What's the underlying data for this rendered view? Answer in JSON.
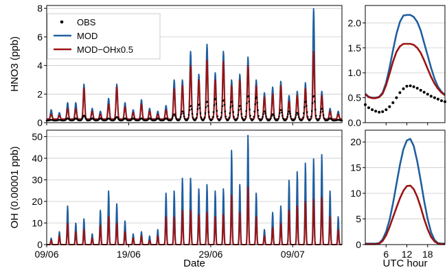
{
  "colors": {
    "obs": "#000000",
    "mod": "#1f5fa0",
    "mod_oh": "#9b1212",
    "grid": "#c8c8c8"
  },
  "chart_data": [
    {
      "type": "line",
      "panel": "hno3-timeseries",
      "ylabel": "HNO3 (ppb)",
      "xlabel": "",
      "xlim": [
        "2019-06-09",
        "2019-07-15"
      ],
      "ylim": [
        0,
        8.2
      ],
      "xtick_labels": [
        "09/06",
        "19/06",
        "29/06",
        "09/07"
      ],
      "ytick_labels": [
        "0",
        "2",
        "4",
        "6",
        "8"
      ],
      "grid": "horizontal",
      "legend": {
        "position": "top-left",
        "entries": [
          "OBS",
          "MOD",
          "MOD−OHx0.5"
        ]
      },
      "daily_peaks": {
        "dates": [
          "06-09",
          "06-10",
          "06-11",
          "06-12",
          "06-13",
          "06-14",
          "06-15",
          "06-16",
          "06-17",
          "06-18",
          "06-19",
          "06-20",
          "06-21",
          "06-22",
          "06-23",
          "06-24",
          "06-25",
          "06-26",
          "06-27",
          "06-28",
          "06-29",
          "06-30",
          "07-01",
          "07-02",
          "07-03",
          "07-04",
          "07-05",
          "07-06",
          "07-07",
          "07-08",
          "07-09",
          "07-10",
          "07-11",
          "07-12",
          "07-13",
          "07-14"
        ],
        "series": [
          {
            "name": "MOD",
            "values": [
              0.9,
              0.7,
              1.4,
              1.4,
              2.7,
              1.0,
              0.8,
              1.7,
              2.7,
              1.4,
              0.9,
              1.6,
              1.0,
              0.8,
              1.2,
              3.0,
              3.0,
              5.0,
              3.4,
              5.5,
              3.5,
              5.0,
              3.0,
              3.4,
              4.6,
              3.0,
              2.1,
              2.5,
              2.9,
              1.9,
              2.2,
              2.8,
              8.0,
              2.2,
              1.0,
              0.8
            ]
          },
          {
            "name": "MOD−OHx0.5",
            "values": [
              0.6,
              0.5,
              1.0,
              1.0,
              2.4,
              0.8,
              0.6,
              1.3,
              2.5,
              1.1,
              0.7,
              1.3,
              0.8,
              0.6,
              0.9,
              2.4,
              2.6,
              4.0,
              3.0,
              4.4,
              3.0,
              4.3,
              2.6,
              3.0,
              4.0,
              2.6,
              1.8,
              2.0,
              2.6,
              1.5,
              1.9,
              2.4,
              5.0,
              1.9,
              0.8,
              0.6
            ]
          },
          {
            "name": "OBS",
            "values": [
              0.2,
              0.2,
              0.3,
              0.3,
              0.5,
              0.3,
              0.3,
              0.3,
              0.4,
              0.3,
              0.3,
              0.3,
              0.3,
              0.3,
              0.3,
              0.6,
              0.8,
              1.2,
              1.3,
              1.5,
              1.7,
              1.6,
              1.5,
              1.2,
              1.9,
              1.8,
              0.8,
              0.6,
              0.9,
              0.8,
              0.7,
              1.5,
              1.9,
              1.0,
              0.3,
              0.2
            ]
          }
        ]
      }
    },
    {
      "type": "line",
      "panel": "oh-timeseries",
      "ylabel": "OH (0.00001 ppb)",
      "xlabel": "Date",
      "xlim": [
        "2019-06-09",
        "2019-07-15"
      ],
      "ylim": [
        0,
        53
      ],
      "xtick_labels": [
        "09/06",
        "19/06",
        "29/06",
        "09/07"
      ],
      "ytick_labels": [
        "0",
        "10",
        "20",
        "30",
        "40",
        "50"
      ],
      "grid": "horizontal",
      "daily_peaks": {
        "dates": [
          "06-09",
          "06-10",
          "06-11",
          "06-12",
          "06-13",
          "06-14",
          "06-15",
          "06-16",
          "06-17",
          "06-18",
          "06-19",
          "06-20",
          "06-21",
          "06-22",
          "06-23",
          "06-24",
          "06-25",
          "06-26",
          "06-27",
          "06-28",
          "06-29",
          "06-30",
          "07-01",
          "07-02",
          "07-03",
          "07-04",
          "07-05",
          "07-06",
          "07-07",
          "07-08",
          "07-09",
          "07-10",
          "07-11",
          "07-12",
          "07-13",
          "07-14"
        ],
        "series": [
          {
            "name": "MOD",
            "values": [
              3,
              6,
              18,
              10,
              12,
              5,
              16,
              25,
              19,
              11,
              5,
              6,
              4,
              7,
              24,
              25,
              31,
              31,
              26,
              28,
              25,
              26,
              44,
              28,
              51,
              24,
              7,
              15,
              18,
              30,
              34,
              38,
              40,
              42,
              25,
              13
            ]
          },
          {
            "name": "MOD−OHx0.5",
            "values": [
              2,
              4,
              10,
              6,
              7,
              3,
              9,
              13,
              10,
              6,
              3,
              4,
              2,
              4,
              13,
              13,
              16,
              16,
              14,
              15,
              13,
              14,
              23,
              15,
              27,
              13,
              4,
              8,
              10,
              16,
              18,
              20,
              21,
              22,
              13,
              7
            ]
          }
        ]
      }
    },
    {
      "type": "line",
      "panel": "hno3-diurnal",
      "xlabel": "",
      "xlim": [
        0,
        23
      ],
      "ylim": [
        0,
        2.35
      ],
      "ytick_labels": [
        "0.0",
        "0.5",
        "1.0",
        "1.5",
        "2.0"
      ],
      "grid": "horizontal",
      "x": [
        0,
        1,
        2,
        3,
        4,
        5,
        6,
        7,
        8,
        9,
        10,
        11,
        12,
        13,
        14,
        15,
        16,
        17,
        18,
        19,
        20,
        21,
        22,
        23
      ],
      "series": [
        {
          "name": "MOD",
          "values": [
            0.58,
            0.52,
            0.5,
            0.5,
            0.52,
            0.6,
            0.8,
            1.1,
            1.45,
            1.78,
            2.02,
            2.15,
            2.16,
            2.16,
            2.12,
            2.02,
            1.85,
            1.6,
            1.35,
            1.1,
            0.88,
            0.72,
            0.62,
            0.56
          ]
        },
        {
          "name": "MOD−OHx0.5",
          "values": [
            0.57,
            0.51,
            0.49,
            0.49,
            0.51,
            0.58,
            0.75,
            0.98,
            1.22,
            1.42,
            1.53,
            1.58,
            1.58,
            1.58,
            1.56,
            1.5,
            1.4,
            1.25,
            1.08,
            0.92,
            0.78,
            0.68,
            0.6,
            0.55
          ]
        },
        {
          "name": "OBS",
          "values": [
            0.36,
            0.3,
            0.26,
            0.23,
            0.21,
            0.22,
            0.26,
            0.32,
            0.4,
            0.5,
            0.6,
            0.68,
            0.73,
            0.74,
            0.72,
            0.69,
            0.65,
            0.61,
            0.57,
            0.53,
            0.5,
            0.47,
            0.44,
            0.42
          ]
        }
      ]
    },
    {
      "type": "line",
      "panel": "oh-diurnal",
      "xlabel": "UTC hour",
      "xlim": [
        0,
        23
      ],
      "ylim": [
        0,
        22.3
      ],
      "xtick_labels": [
        "6",
        "12",
        "18"
      ],
      "ytick_labels": [
        "0",
        "5",
        "10",
        "15",
        "20"
      ],
      "grid": "horizontal",
      "x": [
        0,
        1,
        2,
        3,
        4,
        5,
        6,
        7,
        8,
        9,
        10,
        11,
        12,
        13,
        14,
        15,
        16,
        17,
        18,
        19,
        20,
        21,
        22,
        23
      ],
      "series": [
        {
          "name": "MOD",
          "values": [
            0.2,
            0.2,
            0.2,
            0.2,
            0.3,
            1.0,
            2.5,
            4.8,
            8.0,
            11.8,
            15.5,
            18.6,
            20.3,
            20.6,
            19.2,
            16.2,
            12.5,
            8.5,
            5.0,
            2.4,
            0.9,
            0.3,
            0.2,
            0.2
          ]
        },
        {
          "name": "MOD−OHx0.5",
          "values": [
            0.1,
            0.1,
            0.1,
            0.1,
            0.2,
            0.7,
            1.8,
            3.4,
            5.3,
            7.2,
            9.0,
            10.5,
            11.4,
            11.5,
            10.8,
            9.3,
            7.3,
            5.0,
            3.0,
            1.5,
            0.6,
            0.2,
            0.1,
            0.1
          ]
        }
      ]
    }
  ]
}
